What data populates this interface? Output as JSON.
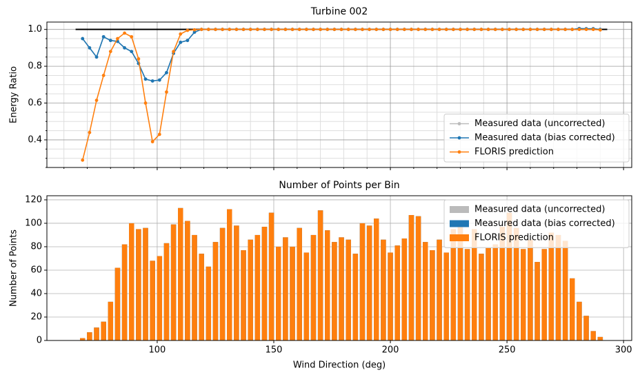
{
  "chart_data": [
    {
      "type": "line",
      "title": "Turbine 002",
      "ylabel": "Energy Ratio",
      "x": [
        68,
        71,
        74,
        77,
        80,
        83,
        86,
        89,
        92,
        95,
        98,
        101,
        104,
        107,
        110,
        113,
        116,
        119,
        122,
        125,
        128,
        131,
        134,
        137,
        140,
        143,
        146,
        149,
        152,
        155,
        158,
        161,
        164,
        167,
        170,
        173,
        176,
        179,
        182,
        185,
        188,
        191,
        194,
        197,
        200,
        203,
        206,
        209,
        212,
        215,
        218,
        221,
        224,
        227,
        230,
        233,
        236,
        239,
        242,
        245,
        248,
        251,
        254,
        257,
        260,
        263,
        266,
        269,
        272,
        275,
        278,
        281,
        284,
        287,
        290
      ],
      "series": [
        {
          "name": "Measured data (uncorrected)",
          "color": "#bbbbbb",
          "values": [
            0.95,
            0.9,
            0.85,
            0.96,
            0.94,
            0.935,
            0.9,
            0.88,
            0.815,
            0.73,
            0.72,
            0.725,
            0.765,
            0.87,
            0.93,
            0.94,
            0.985,
            1.0,
            1.0,
            1.0,
            1.0,
            1.0,
            1.0,
            1.0,
            1.0,
            1.0,
            1.0,
            1.0,
            1.0,
            1.0,
            1.0,
            1.0,
            1.0,
            1.0,
            1.0,
            1.0,
            1.0,
            1.0,
            1.0,
            1.0,
            1.0,
            1.0,
            1.0,
            1.0,
            1.0,
            1.0,
            1.0,
            1.0,
            1.0,
            1.0,
            1.0,
            1.0,
            1.0,
            1.0,
            1.0,
            1.0,
            1.0,
            1.0,
            1.0,
            1.0,
            1.0,
            1.0,
            1.0,
            1.0,
            1.0,
            1.0,
            1.0,
            1.0,
            1.0,
            1.0,
            1.0,
            1.005,
            1.004,
            1.004,
            1.0
          ]
        },
        {
          "name": "Measured data (bias corrected)",
          "color": "#1f77b4",
          "values": [
            0.95,
            0.9,
            0.85,
            0.96,
            0.94,
            0.935,
            0.9,
            0.88,
            0.815,
            0.73,
            0.72,
            0.725,
            0.765,
            0.87,
            0.93,
            0.94,
            0.985,
            1.0,
            1.0,
            1.0,
            1.0,
            1.0,
            1.0,
            1.0,
            1.0,
            1.0,
            1.0,
            1.0,
            1.0,
            1.0,
            1.0,
            1.0,
            1.0,
            1.0,
            1.0,
            1.0,
            1.0,
            1.0,
            1.0,
            1.0,
            1.0,
            1.0,
            1.0,
            1.0,
            1.0,
            1.0,
            1.0,
            1.0,
            1.0,
            1.0,
            1.0,
            1.0,
            1.0,
            1.0,
            1.0,
            1.0,
            1.0,
            1.0,
            1.0,
            1.0,
            1.0,
            1.0,
            1.0,
            1.0,
            1.0,
            1.0,
            1.0,
            1.0,
            1.0,
            1.0,
            1.0,
            1.005,
            1.004,
            1.004,
            1.0
          ]
        },
        {
          "name": "FLORIS prediction",
          "color": "#ff7f0e",
          "values": [
            0.29,
            0.44,
            0.615,
            0.75,
            0.88,
            0.95,
            0.98,
            0.96,
            0.84,
            0.6,
            0.39,
            0.43,
            0.66,
            0.88,
            0.975,
            0.995,
            0.998,
            1.0,
            1.0,
            1.0,
            1.0,
            1.0,
            1.0,
            1.0,
            1.0,
            1.0,
            1.0,
            1.0,
            1.0,
            1.0,
            1.0,
            1.0,
            1.0,
            1.0,
            1.0,
            1.0,
            1.0,
            1.0,
            1.0,
            1.0,
            1.0,
            1.0,
            1.0,
            1.0,
            1.0,
            1.0,
            1.0,
            1.0,
            1.0,
            1.0,
            1.0,
            1.0,
            1.0,
            1.0,
            1.0,
            1.0,
            1.0,
            1.0,
            1.0,
            1.0,
            1.0,
            1.0,
            1.0,
            1.0,
            1.0,
            1.0,
            1.0,
            1.0,
            1.0,
            1.0,
            1.0,
            1.0,
            1.0,
            1.0,
            0.997
          ]
        }
      ],
      "hline": {
        "y": 1.0,
        "x": [
          65,
          293
        ],
        "color": "#000000"
      },
      "xlim": [
        52.7,
        303.5
      ],
      "xticks": [
        100,
        150,
        200,
        250,
        300
      ],
      "xtick_labels": false,
      "ylim": [
        0.25,
        1.04
      ],
      "yticks": [
        0.4,
        0.6,
        0.8,
        {
          "value": 1.0,
          "label": "1.0"
        }
      ],
      "grid": true,
      "minor_grid": true,
      "legend": "lower right"
    },
    {
      "type": "bar",
      "title": "Number of Points per Bin",
      "ylabel": "Number of Points",
      "xlabel": "Wind Direction (deg)",
      "x": [
        68,
        71,
        74,
        77,
        80,
        83,
        86,
        89,
        92,
        95,
        98,
        101,
        104,
        107,
        110,
        113,
        116,
        119,
        122,
        125,
        128,
        131,
        134,
        137,
        140,
        143,
        146,
        149,
        152,
        155,
        158,
        161,
        164,
        167,
        170,
        173,
        176,
        179,
        182,
        185,
        188,
        191,
        194,
        197,
        200,
        203,
        206,
        209,
        212,
        215,
        218,
        221,
        224,
        227,
        230,
        233,
        236,
        239,
        242,
        245,
        248,
        251,
        254,
        257,
        260,
        263,
        266,
        269,
        272,
        275,
        278,
        281,
        284,
        287,
        290
      ],
      "series": [
        {
          "name": "Measured data (uncorrected)",
          "color": "#bbbbbb",
          "values": [
            2,
            7,
            11,
            16,
            33,
            62,
            82,
            100,
            95,
            96,
            68,
            72,
            83,
            99,
            113,
            102,
            90,
            74,
            63,
            84,
            96,
            112,
            98,
            77,
            86,
            90,
            97,
            109,
            80,
            88,
            80,
            96,
            75,
            90,
            111,
            94,
            84,
            88,
            86,
            74,
            100,
            98,
            104,
            86,
            75,
            81,
            87,
            107,
            106,
            84,
            77,
            86,
            75,
            95,
            100,
            78,
            95,
            74,
            79,
            82,
            97,
            109,
            96,
            78,
            86,
            67,
            78,
            92,
            90,
            85,
            53,
            33,
            21,
            8,
            3
          ]
        },
        {
          "name": "Measured data (bias corrected)",
          "color": "#1f77b4",
          "values": [
            2,
            7,
            11,
            16,
            33,
            62,
            82,
            100,
            95,
            96,
            68,
            72,
            83,
            99,
            113,
            102,
            90,
            74,
            63,
            84,
            96,
            112,
            98,
            77,
            86,
            90,
            97,
            109,
            80,
            88,
            80,
            96,
            75,
            90,
            111,
            94,
            84,
            88,
            86,
            74,
            100,
            98,
            104,
            86,
            75,
            81,
            87,
            107,
            106,
            84,
            77,
            86,
            75,
            95,
            100,
            78,
            95,
            74,
            79,
            82,
            97,
            109,
            96,
            78,
            86,
            67,
            78,
            92,
            90,
            85,
            53,
            33,
            21,
            8,
            3
          ]
        },
        {
          "name": "FLORIS prediction",
          "color": "#ff7f0e",
          "values": [
            2,
            7,
            11,
            16,
            33,
            62,
            82,
            100,
            95,
            96,
            68,
            72,
            83,
            99,
            113,
            102,
            90,
            74,
            63,
            84,
            96,
            112,
            98,
            77,
            86,
            90,
            97,
            109,
            80,
            88,
            80,
            96,
            75,
            90,
            111,
            94,
            84,
            88,
            86,
            74,
            100,
            98,
            104,
            86,
            75,
            81,
            87,
            107,
            106,
            84,
            77,
            86,
            75,
            95,
            100,
            78,
            95,
            74,
            79,
            82,
            97,
            109,
            96,
            78,
            86,
            67,
            78,
            92,
            90,
            85,
            53,
            33,
            21,
            8,
            3
          ]
        }
      ],
      "xlim": [
        52.7,
        303.5
      ],
      "xticks": [
        100,
        150,
        200,
        250,
        300
      ],
      "ylim": [
        0,
        123.5
      ],
      "yticks": [
        0,
        20,
        40,
        60,
        80,
        100,
        120
      ],
      "grid": true,
      "legend": "upper right"
    }
  ]
}
